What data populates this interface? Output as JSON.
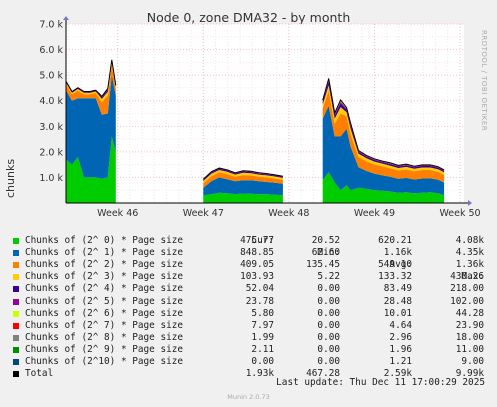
{
  "title": "Node 0, zone DMA32 - by month",
  "ylabel": "chunks",
  "watermark": "RRDTOOL / TOBI OETIKER",
  "footer": "Munin 2.0.73",
  "last_update": "Last update: Thu Dec 11 17:00:29 2025",
  "legend_headers": {
    "cur": "Cur:",
    "min": "Min:",
    "avg": "Avg:",
    "max": "Max:"
  },
  "legend_rows": [
    {
      "name": "Chunks of (2^ 0) * Page size",
      "color": "#00cc00",
      "cur": "475.77",
      "min": "20.52",
      "avg": "620.21",
      "max": "4.08k"
    },
    {
      "name": "Chunks of (2^ 1) * Page size",
      "color": "#0066b3",
      "cur": "848.85",
      "min": "62.60",
      "avg": "1.16k",
      "max": "4.35k"
    },
    {
      "name": "Chunks of (2^ 2) * Page size",
      "color": "#ff8000",
      "cur": "409.05",
      "min": "135.45",
      "avg": "549.10",
      "max": "1.36k"
    },
    {
      "name": "Chunks of (2^ 3) * Page size",
      "color": "#ffcc00",
      "cur": "103.93",
      "min": "5.22",
      "avg": "133.32",
      "max": "430.26"
    },
    {
      "name": "Chunks of (2^ 4) * Page size",
      "color": "#330099",
      "cur": "52.04",
      "min": "0.00",
      "avg": "83.49",
      "max": "218.00"
    },
    {
      "name": "Chunks of (2^ 5) * Page size",
      "color": "#990099",
      "cur": "23.78",
      "min": "0.00",
      "avg": "28.48",
      "max": "102.00"
    },
    {
      "name": "Chunks of (2^ 6) * Page size",
      "color": "#ccff00",
      "cur": "5.80",
      "min": "0.00",
      "avg": "10.01",
      "max": "44.28"
    },
    {
      "name": "Chunks of (2^ 7) * Page size",
      "color": "#ff0000",
      "cur": "7.97",
      "min": "0.00",
      "avg": "4.64",
      "max": "23.90"
    },
    {
      "name": "Chunks of (2^ 8) * Page size",
      "color": "#808080",
      "cur": "1.99",
      "min": "0.00",
      "avg": "2.96",
      "max": "18.00"
    },
    {
      "name": "Chunks of (2^ 9) * Page size",
      "color": "#008f00",
      "cur": "2.11",
      "min": "0.00",
      "avg": "1.96",
      "max": "11.00"
    },
    {
      "name": "Chunks of (2^10) * Page size",
      "color": "#00487d",
      "cur": "0.00",
      "min": "0.00",
      "avg": "1.21",
      "max": "9.00"
    },
    {
      "name": "Total",
      "color": "#000000",
      "cur": "1.93k",
      "min": "467.28",
      "avg": "2.59k",
      "max": "9.99k"
    }
  ],
  "chart_data": {
    "type": "area",
    "stacked": true,
    "title": "Node 0, zone DMA32 - by month",
    "ylabel": "chunks",
    "ylim": [
      0,
      7000
    ],
    "yticks": [
      1000,
      2000,
      3000,
      4000,
      5000,
      6000,
      7000
    ],
    "ytick_labels": [
      "1.0 k",
      "2.0 k",
      "3.0 k",
      "4.0 k",
      "5.0 k",
      "6.0 k",
      "7.0 k"
    ],
    "xlim": [
      0,
      10
    ],
    "xticks": [
      1.3,
      3.45,
      5.6,
      7.75,
      9.9
    ],
    "xtick_labels": [
      "Week 46",
      "Week 47",
      "Week 48",
      "Week 49",
      "Week 50"
    ],
    "x": [
      0,
      0.15,
      0.3,
      0.45,
      0.6,
      0.75,
      0.9,
      1.05,
      1.15,
      1.25,
      3.45,
      3.65,
      3.85,
      4.05,
      4.25,
      4.45,
      4.65,
      4.85,
      5.05,
      5.25,
      5.45,
      6.45,
      6.6,
      6.75,
      6.9,
      7.05,
      7.15,
      7.35,
      7.55,
      7.75,
      7.95,
      8.15,
      8.35,
      8.55,
      8.75,
      8.95,
      9.15,
      9.35,
      9.5
    ],
    "series": [
      {
        "name": "Chunks of (2^ 0) * Page size",
        "values": [
          1700,
          1500,
          1800,
          1000,
          1000,
          1000,
          950,
          1000,
          2600,
          2000,
          300,
          350,
          400,
          380,
          350,
          370,
          360,
          350,
          340,
          320,
          300,
          900,
          1200,
          800,
          500,
          700,
          500,
          600,
          550,
          500,
          480,
          450,
          400,
          420,
          380,
          400,
          420,
          380,
          300
        ]
      },
      {
        "name": "Chunks of (2^ 1) * Page size",
        "values": [
          2700,
          2500,
          2300,
          3100,
          3100,
          3100,
          2500,
          2500,
          2400,
          2200,
          300,
          500,
          600,
          550,
          500,
          520,
          530,
          500,
          480,
          470,
          450,
          2400,
          2600,
          1800,
          2100,
          2200,
          1700,
          800,
          700,
          650,
          600,
          580,
          550,
          560,
          540,
          560,
          550,
          530,
          500
        ]
      },
      {
        "name": "Chunks of (2^ 2) * Page size",
        "values": [
          250,
          250,
          300,
          150,
          150,
          200,
          500,
          700,
          400,
          250,
          180,
          200,
          200,
          200,
          180,
          200,
          190,
          180,
          180,
          170,
          160,
          400,
          600,
          500,
          900,
          500,
          500,
          400,
          380,
          360,
          350,
          330,
          320,
          330,
          320,
          330,
          320,
          310,
          300
        ]
      },
      {
        "name": "Chunks of (2^ 3) * Page size",
        "values": [
          60,
          60,
          60,
          60,
          60,
          60,
          120,
          150,
          100,
          80,
          80,
          90,
          90,
          90,
          80,
          90,
          85,
          80,
          80,
          75,
          70,
          150,
          200,
          200,
          250,
          150,
          200,
          130,
          120,
          110,
          110,
          100,
          100,
          100,
          100,
          100,
          100,
          100,
          100
        ]
      },
      {
        "name": "Chunks of (2^ 4) * Page size",
        "values": [
          30,
          30,
          30,
          30,
          30,
          30,
          60,
          80,
          60,
          40,
          40,
          50,
          50,
          50,
          40,
          50,
          45,
          40,
          40,
          40,
          40,
          100,
          150,
          120,
          150,
          100,
          120,
          70,
          60,
          60,
          55,
          55,
          55,
          55,
          55,
          55,
          55,
          55,
          50
        ]
      },
      {
        "name": "Chunks of (2^ 5) * Page size",
        "values": [
          10,
          10,
          10,
          10,
          10,
          10,
          20,
          30,
          20,
          15,
          15,
          20,
          20,
          20,
          15,
          20,
          18,
          15,
          15,
          15,
          15,
          40,
          60,
          50,
          60,
          40,
          50,
          30,
          28,
          26,
          25,
          25,
          25,
          25,
          25,
          25,
          25,
          25,
          24
        ]
      },
      {
        "name": "Chunks of (2^ 6) * Page size",
        "values": [
          4,
          4,
          4,
          4,
          4,
          4,
          8,
          10,
          8,
          6,
          5,
          6,
          6,
          6,
          5,
          6,
          6,
          5,
          5,
          5,
          5,
          15,
          25,
          20,
          25,
          15,
          20,
          10,
          9,
          9,
          8,
          8,
          8,
          8,
          8,
          8,
          8,
          8,
          6
        ]
      },
      {
        "name": "Chunks of (2^ 7) * Page size",
        "values": [
          2,
          2,
          2,
          2,
          2,
          2,
          4,
          6,
          4,
          3,
          3,
          3,
          3,
          3,
          3,
          3,
          3,
          3,
          3,
          3,
          3,
          8,
          15,
          12,
          15,
          8,
          12,
          6,
          6,
          6,
          6,
          6,
          6,
          6,
          6,
          6,
          6,
          6,
          8
        ]
      },
      {
        "name": "Chunks of (2^ 8) * Page size",
        "values": [
          1,
          1,
          1,
          1,
          1,
          1,
          2,
          3,
          2,
          2,
          2,
          2,
          2,
          2,
          2,
          2,
          2,
          2,
          2,
          2,
          2,
          5,
          10,
          8,
          10,
          5,
          8,
          4,
          4,
          4,
          3,
          3,
          3,
          3,
          3,
          3,
          3,
          3,
          2
        ]
      },
      {
        "name": "Chunks of (2^ 9) * Page size",
        "values": [
          1,
          1,
          1,
          1,
          1,
          1,
          1,
          2,
          1,
          1,
          1,
          1,
          1,
          1,
          1,
          1,
          1,
          1,
          1,
          1,
          1,
          3,
          6,
          5,
          6,
          3,
          5,
          2,
          2,
          2,
          2,
          2,
          2,
          2,
          2,
          2,
          2,
          2,
          2
        ]
      },
      {
        "name": "Chunks of (2^10) * Page size",
        "values": [
          1,
          1,
          1,
          1,
          1,
          1,
          1,
          1,
          1,
          1,
          0,
          0,
          0,
          0,
          0,
          0,
          0,
          0,
          0,
          0,
          0,
          2,
          5,
          4,
          5,
          2,
          4,
          1,
          1,
          1,
          1,
          1,
          1,
          1,
          1,
          1,
          1,
          1,
          0
        ]
      }
    ],
    "total": {
      "name": "Total",
      "values": [
        4760,
        4360,
        4510,
        4360,
        4360,
        4410,
        4170,
        4480,
        5600,
        4600,
        930,
        1220,
        1370,
        1300,
        1180,
        1260,
        1240,
        1180,
        1150,
        1100,
        1050,
        4020,
        4870,
        3520,
        4030,
        3730,
        3120,
        2050,
        1860,
        1730,
        1640,
        1570,
        1470,
        1520,
        1440,
        1490,
        1490,
        1420,
        1290
      ]
    },
    "segments": [
      [
        0,
        9
      ],
      [
        10,
        20
      ],
      [
        21,
        38
      ]
    ],
    "grid": true,
    "legend_position": "bottom"
  }
}
